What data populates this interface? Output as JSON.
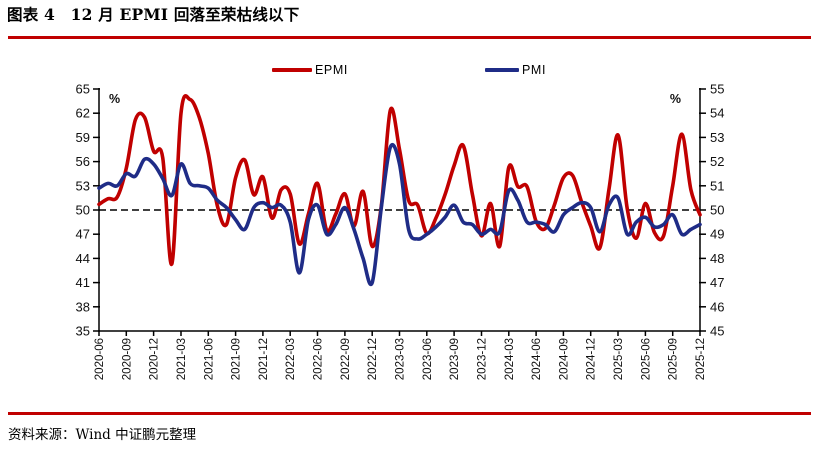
{
  "page": {
    "title": "图表 4　12 月 EPMI 回落至荣枯线以下",
    "source": "资料来源：Wind 中证鹏元整理"
  },
  "colors": {
    "rule": "#C00000",
    "epmi": "#C00000",
    "pmi": "#1F2C87",
    "axis": "#000000",
    "text": "#111111"
  },
  "chart_data": {
    "type": "line",
    "title": "12 月 EPMI 回落至荣枯线以下",
    "x": [
      "2020-06",
      "2020-07",
      "2020-08",
      "2020-09",
      "2020-10",
      "2020-11",
      "2020-12",
      "2021-01",
      "2021-02",
      "2021-03",
      "2021-04",
      "2021-05",
      "2021-06",
      "2021-07",
      "2021-08",
      "2021-09",
      "2021-10",
      "2021-11",
      "2021-12",
      "2022-01",
      "2022-02",
      "2022-03",
      "2022-04",
      "2022-05",
      "2022-06",
      "2022-07",
      "2022-08",
      "2022-09",
      "2022-10",
      "2022-11",
      "2022-12",
      "2023-01",
      "2023-02",
      "2023-03",
      "2023-04",
      "2023-05",
      "2023-06",
      "2023-07",
      "2023-08",
      "2023-09",
      "2023-10",
      "2023-11",
      "2023-12",
      "2024-01",
      "2024-02",
      "2024-03",
      "2024-04",
      "2024-05",
      "2024-06",
      "2024-07",
      "2024-08",
      "2024-09",
      "2024-10",
      "2024-11",
      "2024-12",
      "2025-01",
      "2025-02",
      "2025-03",
      "2025-04",
      "2025-05",
      "2025-06",
      "2025-07",
      "2025-08",
      "2025-09",
      "2025-10",
      "2025-11",
      "2025-12"
    ],
    "x_tick_every": 3,
    "series": [
      {
        "name": "EPMI",
        "axis": "left",
        "color": "#C00000",
        "values": [
          50.7,
          51.4,
          51.6,
          55.2,
          61.2,
          61.5,
          57.3,
          56.5,
          43.3,
          62.0,
          63.7,
          61.5,
          57.0,
          50.5,
          48.2,
          54.0,
          56.2,
          51.9,
          54.1,
          49.0,
          52.5,
          52.0,
          45.8,
          49.5,
          53.3,
          47.5,
          49.5,
          52.0,
          48.0,
          52.3,
          45.5,
          50.5,
          62.4,
          57.5,
          51.2,
          50.6,
          47.1,
          49.0,
          51.9,
          55.5,
          58.0,
          52.0,
          46.8,
          50.8,
          45.5,
          55.3,
          52.9,
          52.9,
          48.6,
          47.7,
          50.6,
          54.0,
          54.3,
          51.0,
          48.0,
          45.3,
          52.5,
          59.3,
          50.2,
          46.5,
          50.8,
          47.2,
          46.8,
          53.0,
          59.4,
          52.5,
          49.4
        ]
      },
      {
        "name": "PMI",
        "axis": "right",
        "color": "#1F2C87",
        "values": [
          50.9,
          51.1,
          51.0,
          51.5,
          51.4,
          52.1,
          51.9,
          51.3,
          50.6,
          51.9,
          51.1,
          51.0,
          50.9,
          50.4,
          50.1,
          49.6,
          49.2,
          50.1,
          50.3,
          50.1,
          50.2,
          49.5,
          47.4,
          49.6,
          50.2,
          49.0,
          49.4,
          50.1,
          49.2,
          48.0,
          47.0,
          50.1,
          52.6,
          51.9,
          49.2,
          48.8,
          49.0,
          49.3,
          49.7,
          50.2,
          49.5,
          49.4,
          49.0,
          49.2,
          49.1,
          50.8,
          50.4,
          49.5,
          49.5,
          49.4,
          49.1,
          49.8,
          50.1,
          50.3,
          50.1,
          49.1,
          50.2,
          50.5,
          49.0,
          49.5,
          49.7,
          49.3,
          49.4,
          49.8,
          49.0,
          49.2,
          49.4
        ]
      }
    ],
    "left_axis": {
      "label": "%",
      "min": 35,
      "max": 65,
      "tick_step": 3,
      "ticks": [
        35,
        38,
        41,
        44,
        47,
        50,
        53,
        56,
        59,
        62,
        65
      ]
    },
    "right_axis": {
      "label": "%",
      "min": 45,
      "max": 55,
      "tick_step": 1,
      "ticks": [
        45,
        46,
        47,
        48,
        49,
        50,
        51,
        52,
        53,
        54,
        55
      ]
    },
    "reference_line": {
      "axis": "left",
      "value": 50,
      "style": "dashed",
      "color": "#000000"
    },
    "legend": {
      "position": "top",
      "entries": [
        "EPMI",
        "PMI"
      ]
    },
    "grid": "off"
  }
}
